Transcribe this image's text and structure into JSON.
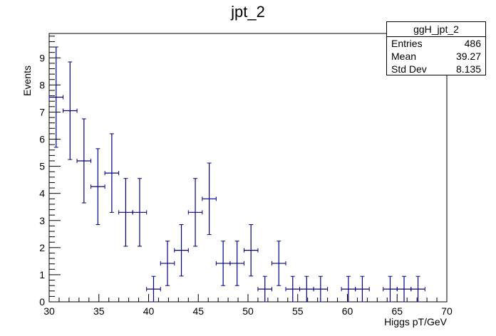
{
  "chart_data": {
    "type": "scatter",
    "title": "jpt_2",
    "xlabel": "Higgs pT/GeV",
    "ylabel": "Events",
    "xlim": [
      30,
      70
    ],
    "ylim": [
      0,
      9.9
    ],
    "x_ticks": [
      30,
      35,
      40,
      45,
      50,
      55,
      60,
      65,
      70
    ],
    "y_ticks": [
      0,
      1,
      2,
      3,
      4,
      5,
      6,
      7,
      8,
      9
    ],
    "bin_width": 1.4,
    "marker_color": "#000080",
    "points": [
      {
        "x": 30.7,
        "y": 7.55,
        "yerr": 1.85
      },
      {
        "x": 32.1,
        "y": 7.05,
        "yerr": 1.8
      },
      {
        "x": 33.5,
        "y": 5.2,
        "yerr": 1.55
      },
      {
        "x": 34.9,
        "y": 4.25,
        "yerr": 1.4
      },
      {
        "x": 36.3,
        "y": 4.75,
        "yerr": 1.45
      },
      {
        "x": 37.7,
        "y": 3.3,
        "yerr": 1.25
      },
      {
        "x": 39.1,
        "y": 3.3,
        "yerr": 1.25
      },
      {
        "x": 40.5,
        "y": 0.47,
        "yerr": 0.47
      },
      {
        "x": 41.9,
        "y": 1.42,
        "yerr": 0.82
      },
      {
        "x": 43.3,
        "y": 1.9,
        "yerr": 0.95
      },
      {
        "x": 44.7,
        "y": 3.3,
        "yerr": 1.25
      },
      {
        "x": 46.1,
        "y": 3.8,
        "yerr": 1.32
      },
      {
        "x": 47.5,
        "y": 1.42,
        "yerr": 0.82
      },
      {
        "x": 48.9,
        "y": 1.42,
        "yerr": 0.82
      },
      {
        "x": 50.3,
        "y": 1.9,
        "yerr": 0.95
      },
      {
        "x": 51.7,
        "y": 0.47,
        "yerr": 0.47
      },
      {
        "x": 53.1,
        "y": 1.42,
        "yerr": 0.82
      },
      {
        "x": 54.5,
        "y": 0.47,
        "yerr": 0.47
      },
      {
        "x": 55.9,
        "y": 0.47,
        "yerr": 0.47
      },
      {
        "x": 57.3,
        "y": 0.47,
        "yerr": 0.47
      },
      {
        "x": 60.1,
        "y": 0.47,
        "yerr": 0.47
      },
      {
        "x": 61.5,
        "y": 0.47,
        "yerr": 0.47
      },
      {
        "x": 64.3,
        "y": 0.47,
        "yerr": 0.47
      },
      {
        "x": 65.7,
        "y": 0.47,
        "yerr": 0.47
      },
      {
        "x": 67.1,
        "y": 0.47,
        "yerr": 0.47
      }
    ]
  },
  "stats": {
    "title": "ggH_jpt_2",
    "entries_label": "Entries",
    "entries_value": "486",
    "mean_label": "Mean",
    "mean_value": "39.27",
    "stddev_label": "Std Dev",
    "stddev_value": "8.135"
  }
}
